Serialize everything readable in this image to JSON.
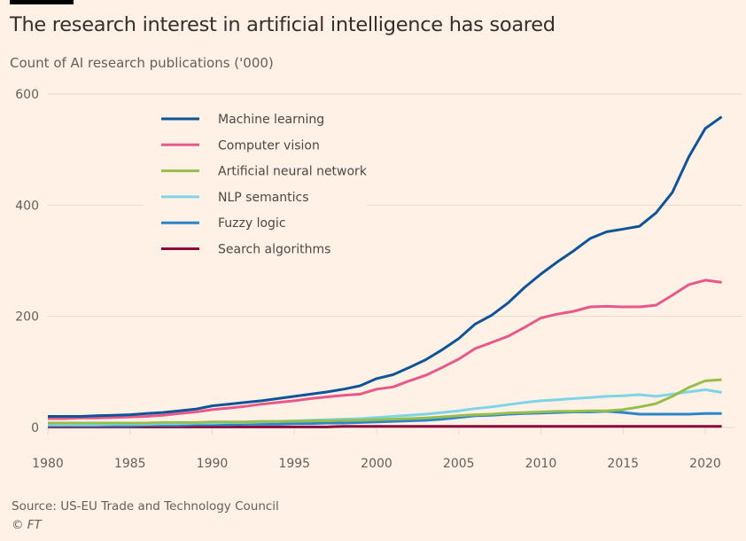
{
  "header": {
    "title": "The research interest in artificial intelligence has soared",
    "subtitle": "Count of AI research publications ('000)"
  },
  "footer": {
    "source": "Source: US-EU Trade and Technology Council",
    "copyright_symbol": "©",
    "copyright_owner": "FT"
  },
  "chart_data": {
    "type": "line",
    "title": "The research interest in artificial intelligence has soared",
    "subtitle": "Count of AI research publications ('000)",
    "xlabel": "",
    "ylabel": "Count of AI research publications ('000)",
    "xlim": [
      1980,
      2021
    ],
    "ylim": [
      0,
      600
    ],
    "x_ticks": [
      1980,
      1985,
      1990,
      1995,
      2000,
      2005,
      2010,
      2015,
      2020
    ],
    "y_ticks": [
      0,
      200,
      400,
      600
    ],
    "grid": "horizontal",
    "legend_position": "top-left",
    "x": [
      1980,
      1981,
      1982,
      1983,
      1984,
      1985,
      1986,
      1987,
      1988,
      1989,
      1990,
      1991,
      1992,
      1993,
      1994,
      1995,
      1996,
      1997,
      1998,
      1999,
      2000,
      2001,
      2002,
      2003,
      2004,
      2005,
      2006,
      2007,
      2008,
      2009,
      2010,
      2011,
      2012,
      2013,
      2014,
      2015,
      2016,
      2017,
      2018,
      2019,
      2020,
      2021
    ],
    "series": [
      {
        "name": "Machine learning",
        "color": "#0F5499",
        "values": [
          20,
          20,
          20,
          21,
          22,
          23,
          25,
          27,
          30,
          33,
          39,
          42,
          45,
          48,
          52,
          56,
          60,
          64,
          69,
          75,
          88,
          95,
          108,
          122,
          140,
          160,
          186,
          202,
          224,
          252,
          276,
          298,
          318,
          340,
          352,
          357,
          362,
          386,
          423,
          487,
          538,
          559
        ]
      },
      {
        "name": "Computer vision",
        "color": "#E8598A",
        "values": [
          16,
          16,
          17,
          17,
          18,
          19,
          20,
          22,
          25,
          28,
          32,
          35,
          38,
          42,
          45,
          48,
          52,
          55,
          58,
          60,
          69,
          73,
          84,
          94,
          108,
          123,
          142,
          153,
          164,
          180,
          197,
          204,
          209,
          217,
          218,
          217,
          217,
          220,
          238,
          257,
          265,
          261
        ]
      },
      {
        "name": "Artificial neural network",
        "color": "#96BE4C",
        "values": [
          8,
          8,
          8,
          8,
          8,
          8,
          8,
          9,
          9,
          9,
          10,
          10,
          10,
          11,
          11,
          11,
          12,
          12,
          13,
          13,
          14,
          15,
          16,
          17,
          19,
          21,
          23,
          24,
          26,
          27,
          28,
          29,
          29,
          30,
          30,
          32,
          37,
          43,
          56,
          72,
          84,
          86
        ]
      },
      {
        "name": "NLP semantics",
        "color": "#7FD5E6",
        "values": [
          5,
          5,
          5,
          5,
          6,
          6,
          6,
          7,
          7,
          8,
          8,
          9,
          9,
          10,
          11,
          12,
          13,
          14,
          15,
          16,
          18,
          20,
          22,
          24,
          27,
          30,
          34,
          37,
          41,
          45,
          48,
          50,
          52,
          54,
          56,
          57,
          59,
          56,
          60,
          64,
          68,
          63
        ]
      },
      {
        "name": "Fuzzy logic",
        "color": "#2B84CC",
        "values": [
          3,
          3,
          3,
          3,
          3,
          3,
          4,
          4,
          4,
          5,
          5,
          5,
          6,
          6,
          6,
          7,
          7,
          8,
          8,
          9,
          10,
          11,
          12,
          13,
          15,
          18,
          21,
          22,
          24,
          25,
          26,
          27,
          28,
          28,
          29,
          27,
          24,
          24,
          24,
          24,
          25,
          25
        ]
      },
      {
        "name": "Search algorithms",
        "color": "#8B0A3A",
        "values": [
          1,
          1,
          1,
          1,
          1,
          1,
          1,
          1,
          1,
          1,
          1,
          1,
          1,
          1,
          1,
          1,
          1,
          1,
          2,
          2,
          2,
          2,
          2,
          2,
          2,
          2,
          2,
          2,
          2,
          2,
          2,
          2,
          2,
          2,
          2,
          2,
          2,
          2,
          2,
          2,
          2,
          2
        ]
      }
    ]
  }
}
